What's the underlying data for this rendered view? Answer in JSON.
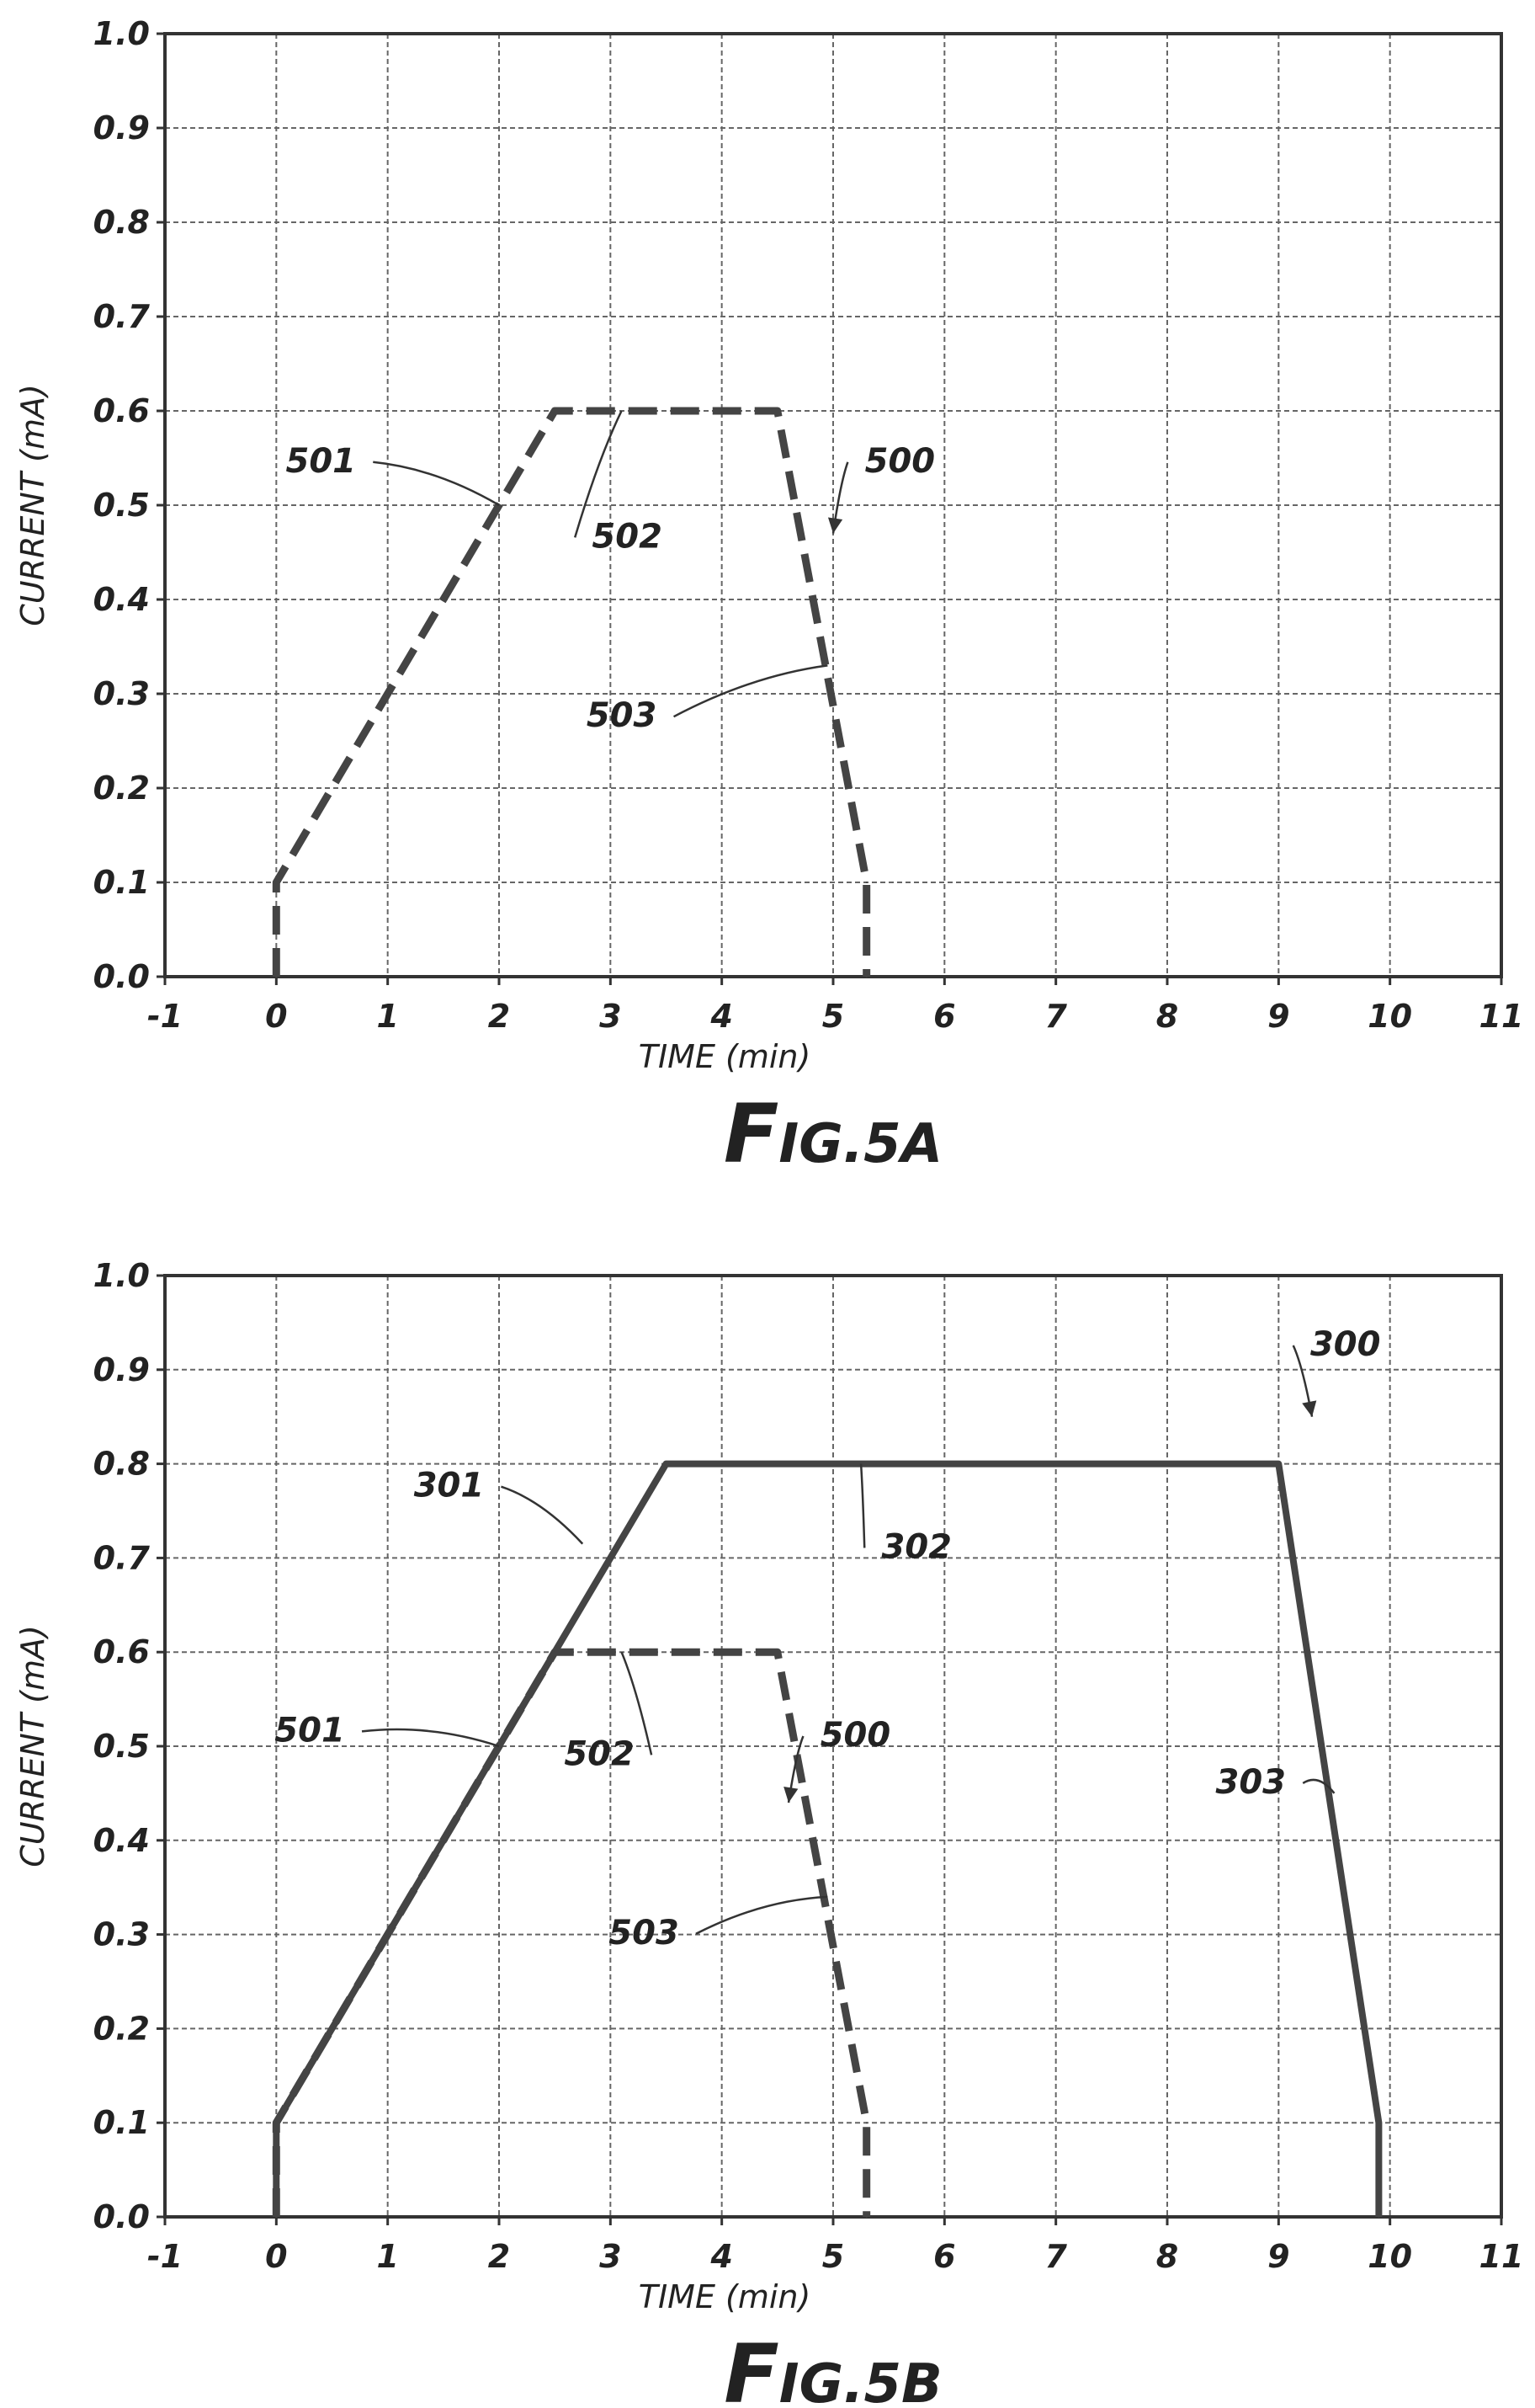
{
  "chart_data": [
    {
      "type": "line",
      "figure": "FIG.5A",
      "title_prefix": "F",
      "title_rest": "IG.5A",
      "xlabel": "TIME (min)",
      "ylabel": "CURRENT (mA)",
      "xlim": [
        -1,
        11
      ],
      "ylim": [
        0.0,
        1.0
      ],
      "xticks": [
        "-1",
        "0",
        "1",
        "2",
        "3",
        "4",
        "5",
        "6",
        "7",
        "8",
        "9",
        "10",
        "11"
      ],
      "yticks": [
        "0.0",
        "0.1",
        "0.2",
        "0.3",
        "0.4",
        "0.5",
        "0.6",
        "0.7",
        "0.8",
        "0.9",
        "1.0"
      ],
      "grid": true,
      "series": [
        {
          "style": "dashed",
          "points": [
            [
              0,
              0.0
            ],
            [
              0,
              0.1
            ],
            [
              2.5,
              0.6
            ],
            [
              4.5,
              0.6
            ],
            [
              5.3,
              0.1
            ],
            [
              5.3,
              0.0
            ]
          ]
        }
      ],
      "annotations": [
        {
          "label": "500",
          "tx": 5.6,
          "ty": 0.535,
          "px": 5.0,
          "py": 0.47,
          "arrow": true
        },
        {
          "label": "501",
          "tx": 0.4,
          "ty": 0.535,
          "px": 2.0,
          "py": 0.5
        },
        {
          "label": "502",
          "tx": 3.15,
          "ty": 0.455,
          "px": 3.1,
          "py": 0.6
        },
        {
          "label": "503",
          "tx": 3.1,
          "ty": 0.265,
          "px": 4.95,
          "py": 0.33
        }
      ]
    },
    {
      "type": "line",
      "figure": "FIG.5B",
      "title_prefix": "F",
      "title_rest": "IG.5B",
      "xlabel": "TIME (min)",
      "ylabel": "CURRENT (mA)",
      "xlim": [
        -1,
        11
      ],
      "ylim": [
        0.0,
        1.0
      ],
      "xticks": [
        "-1",
        "0",
        "1",
        "2",
        "3",
        "4",
        "5",
        "6",
        "7",
        "8",
        "9",
        "10",
        "11"
      ],
      "yticks": [
        "0.0",
        "0.1",
        "0.2",
        "0.3",
        "0.4",
        "0.5",
        "0.6",
        "0.7",
        "0.8",
        "0.9",
        "1.0"
      ],
      "grid": true,
      "series": [
        {
          "style": "solid",
          "points": [
            [
              0,
              0.0
            ],
            [
              0,
              0.1
            ],
            [
              3.5,
              0.8
            ],
            [
              9.0,
              0.8
            ],
            [
              9.9,
              0.1
            ],
            [
              9.9,
              0.0
            ]
          ]
        },
        {
          "style": "dashed",
          "points": [
            [
              0,
              0.0
            ],
            [
              0,
              0.1
            ],
            [
              2.5,
              0.6
            ],
            [
              4.5,
              0.6
            ],
            [
              5.3,
              0.1
            ],
            [
              5.3,
              0.0
            ]
          ]
        }
      ],
      "annotations": [
        {
          "label": "300",
          "tx": 9.6,
          "ty": 0.915,
          "px": 9.3,
          "py": 0.85,
          "arrow": true
        },
        {
          "label": "301",
          "tx": 1.55,
          "ty": 0.765,
          "px": 2.75,
          "py": 0.715
        },
        {
          "label": "302",
          "tx": 5.75,
          "ty": 0.7,
          "px": 5.25,
          "py": 0.8
        },
        {
          "label": "500",
          "tx": 5.2,
          "ty": 0.5,
          "px": 4.6,
          "py": 0.44,
          "arrow": true
        },
        {
          "label": "501",
          "tx": 0.3,
          "ty": 0.505,
          "px": 2.0,
          "py": 0.5
        },
        {
          "label": "502",
          "tx": 2.9,
          "ty": 0.48,
          "px": 3.1,
          "py": 0.6
        },
        {
          "label": "503",
          "tx": 3.3,
          "ty": 0.29,
          "px": 4.95,
          "py": 0.34
        },
        {
          "label": "303",
          "tx": 8.75,
          "ty": 0.45,
          "px": 9.5,
          "py": 0.45
        }
      ]
    }
  ]
}
